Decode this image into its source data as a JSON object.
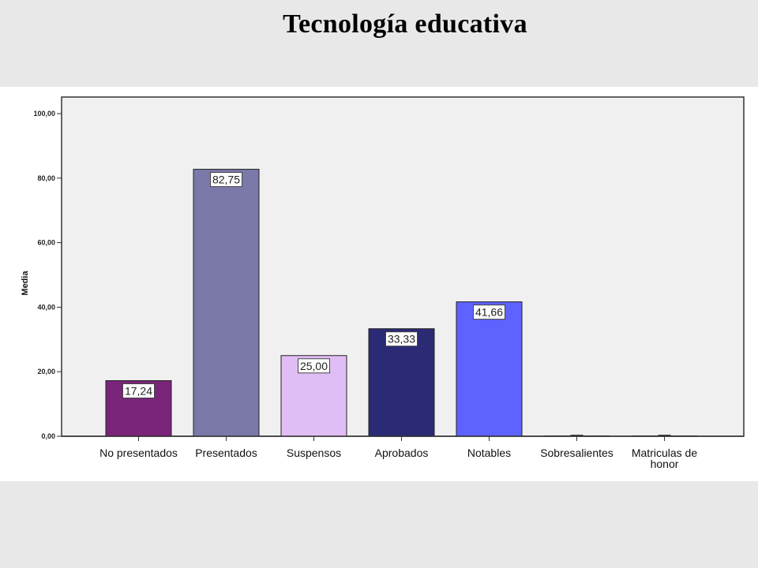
{
  "slide": {
    "title": "Tecnología educativa"
  },
  "chart_data": {
    "type": "bar",
    "title": "",
    "xlabel": "",
    "ylabel": "Media",
    "ylim": [
      0,
      100
    ],
    "yticks": [
      0,
      20,
      40,
      60,
      80,
      100
    ],
    "ytick_labels": [
      "0,00",
      "20,00",
      "40,00",
      "60,00",
      "80,00",
      "100,00"
    ],
    "grid": false,
    "categories": [
      [
        "No presentados"
      ],
      [
        "Presentados"
      ],
      [
        "Suspensos"
      ],
      [
        "Aprobados"
      ],
      [
        "Notables"
      ],
      [
        "Sobresalientes"
      ],
      [
        "Matriculas de",
        "honor"
      ]
    ],
    "values": [
      17.24,
      82.75,
      25.0,
      33.33,
      41.66,
      0,
      0
    ],
    "value_labels": [
      "17,24",
      "82,75",
      "25,00",
      "33,33",
      "41,66",
      "",
      ""
    ],
    "colors": [
      "#7a2579",
      "#7a79a9",
      "#e0bdf4",
      "#2b2a74",
      "#5e62ff",
      "#5e62ff",
      "#5e62ff"
    ],
    "background": "#f0f0f0"
  }
}
